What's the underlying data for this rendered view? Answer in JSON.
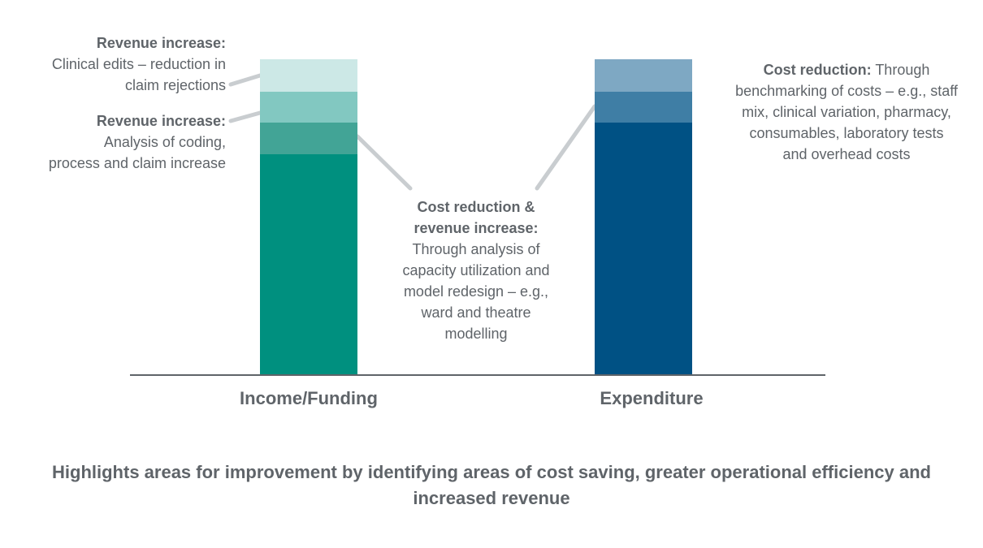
{
  "colors": {
    "text": "#5f6469",
    "connector": "#c9cdd0",
    "baseline": "#5f6469"
  },
  "bars": [
    {
      "label": "Income/Funding",
      "segments": [
        {
          "color": "#00907f",
          "share": 0.698
        },
        {
          "color": "#42a496",
          "share": 0.101
        },
        {
          "color": "#82c8c1",
          "share": 0.098
        },
        {
          "color": "#cce8e6",
          "share": 0.103
        }
      ]
    },
    {
      "label": "Expenditure",
      "segments": [
        {
          "color": "#005184",
          "share": 0.799
        },
        {
          "color": "#3f7ea5",
          "share": 0.098
        },
        {
          "color": "#7ea8c3",
          "share": 0.103
        }
      ]
    }
  ],
  "callouts": {
    "revenue_top": {
      "heading": "Revenue increase:",
      "lines": [
        "Clinical edits – reduction in",
        "claim rejections"
      ]
    },
    "revenue_mid": {
      "heading": "Revenue increase:",
      "lines": [
        "Analysis of coding,",
        "process and claim increase"
      ]
    },
    "center": {
      "heading_lines": [
        "Cost reduction &",
        "revenue increase:"
      ],
      "lines": [
        "Through analysis of",
        "capacity utilization and",
        "model redesign – e.g.,",
        "ward and theatre",
        "modelling"
      ]
    },
    "cost": {
      "heading": "Cost reduction:",
      "first_line_tail": " Through",
      "lines": [
        "benchmarking of costs – e.g., staff",
        "mix, clinical variation, pharmacy,",
        "consumables, laboratory tests",
        "and overhead costs"
      ]
    }
  },
  "caption": "Highlights areas for improvement by identifying areas of cost saving, greater operational efficiency and increased revenue"
}
